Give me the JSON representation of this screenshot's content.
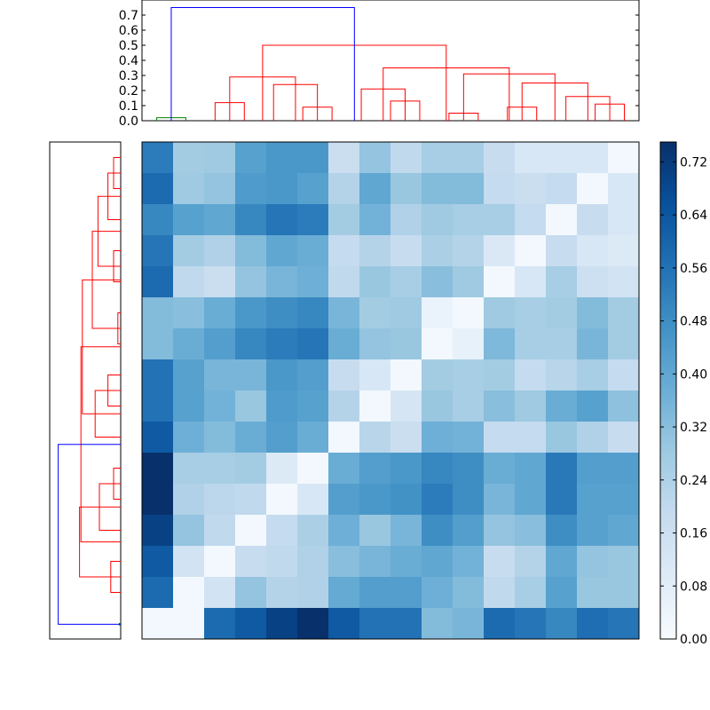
{
  "chart_data": [
    {
      "type": "heatmap",
      "title": "",
      "xlabel": "",
      "ylabel": "",
      "colormap": "Blues",
      "value_range": [
        0.0,
        0.75
      ],
      "rows": 16,
      "cols": 16,
      "values": [
        [
          0.53,
          0.27,
          0.28,
          0.42,
          0.45,
          0.45,
          0.17,
          0.3,
          0.2,
          0.26,
          0.26,
          0.18,
          0.12,
          0.12,
          0.12,
          0.02
        ],
        [
          0.58,
          0.28,
          0.3,
          0.44,
          0.45,
          0.42,
          0.23,
          0.4,
          0.29,
          0.33,
          0.33,
          0.19,
          0.17,
          0.19,
          0.02,
          0.12
        ],
        [
          0.5,
          0.42,
          0.4,
          0.5,
          0.55,
          0.53,
          0.27,
          0.36,
          0.24,
          0.28,
          0.26,
          0.26,
          0.19,
          0.02,
          0.18,
          0.12
        ],
        [
          0.55,
          0.27,
          0.24,
          0.33,
          0.4,
          0.38,
          0.19,
          0.23,
          0.18,
          0.25,
          0.23,
          0.11,
          0.02,
          0.18,
          0.12,
          0.1
        ],
        [
          0.58,
          0.2,
          0.17,
          0.3,
          0.35,
          0.37,
          0.2,
          0.29,
          0.26,
          0.32,
          0.28,
          0.02,
          0.12,
          0.26,
          0.16,
          0.14
        ],
        [
          0.33,
          0.32,
          0.38,
          0.45,
          0.48,
          0.5,
          0.35,
          0.27,
          0.28,
          0.05,
          0.02,
          0.28,
          0.26,
          0.27,
          0.33,
          0.27
        ],
        [
          0.33,
          0.38,
          0.43,
          0.5,
          0.53,
          0.55,
          0.38,
          0.3,
          0.29,
          0.02,
          0.06,
          0.34,
          0.26,
          0.26,
          0.35,
          0.27
        ],
        [
          0.56,
          0.42,
          0.35,
          0.35,
          0.45,
          0.43,
          0.18,
          0.12,
          0.02,
          0.27,
          0.26,
          0.27,
          0.19,
          0.22,
          0.26,
          0.19
        ],
        [
          0.56,
          0.42,
          0.36,
          0.29,
          0.44,
          0.42,
          0.23,
          0.02,
          0.13,
          0.29,
          0.26,
          0.32,
          0.28,
          0.38,
          0.42,
          0.31
        ],
        [
          0.63,
          0.37,
          0.33,
          0.38,
          0.43,
          0.38,
          0.02,
          0.22,
          0.17,
          0.37,
          0.36,
          0.19,
          0.19,
          0.29,
          0.24,
          0.18
        ],
        [
          0.75,
          0.26,
          0.26,
          0.27,
          0.1,
          0.02,
          0.38,
          0.43,
          0.45,
          0.5,
          0.48,
          0.38,
          0.4,
          0.54,
          0.43,
          0.43
        ],
        [
          0.76,
          0.24,
          0.21,
          0.2,
          0.02,
          0.12,
          0.43,
          0.45,
          0.47,
          0.53,
          0.48,
          0.35,
          0.4,
          0.54,
          0.42,
          0.42
        ],
        [
          0.7,
          0.3,
          0.2,
          0.02,
          0.19,
          0.25,
          0.37,
          0.29,
          0.35,
          0.48,
          0.43,
          0.3,
          0.32,
          0.48,
          0.42,
          0.4
        ],
        [
          0.63,
          0.14,
          0.02,
          0.18,
          0.2,
          0.24,
          0.32,
          0.35,
          0.38,
          0.4,
          0.36,
          0.18,
          0.23,
          0.4,
          0.3,
          0.29
        ],
        [
          0.58,
          0.02,
          0.14,
          0.3,
          0.23,
          0.24,
          0.39,
          0.43,
          0.43,
          0.37,
          0.33,
          0.2,
          0.26,
          0.42,
          0.29,
          0.29
        ],
        [
          0.02,
          0.02,
          0.58,
          0.63,
          0.7,
          0.76,
          0.63,
          0.56,
          0.56,
          0.33,
          0.35,
          0.58,
          0.55,
          0.5,
          0.57,
          0.55
        ]
      ],
      "colorbar": {
        "ticks": [
          "0.00",
          "0.08",
          "0.16",
          "0.24",
          "0.32",
          "0.40",
          "0.48",
          "0.56",
          "0.64",
          "0.72"
        ],
        "tick_values": [
          0.0,
          0.08,
          0.16,
          0.24,
          0.32,
          0.4,
          0.48,
          0.56,
          0.64,
          0.72
        ]
      }
    },
    {
      "type": "dendrogram",
      "orientation": "top",
      "title": "",
      "xlabel": "",
      "ylabel": "",
      "ylim": [
        0,
        0.8
      ],
      "yticks": [
        "0.0",
        "0.1",
        "0.2",
        "0.3",
        "0.4",
        "0.5",
        "0.6",
        "0.7"
      ],
      "ytick_values": [
        0.0,
        0.1,
        0.2,
        0.3,
        0.4,
        0.5,
        0.6,
        0.7
      ],
      "links": [
        {
          "left": 0.5,
          "right": 1.5,
          "height": 0.02,
          "color": "#008000"
        },
        {
          "left": 2.5,
          "right": 3.5,
          "height": 0.12,
          "color": "#ff0000"
        },
        {
          "left": 5.5,
          "right": 6.5,
          "height": 0.09,
          "color": "#ff0000"
        },
        {
          "left": 4.5,
          "right": 6.0,
          "height": 0.24,
          "color": "#ff0000"
        },
        {
          "left": 3.0,
          "right": 5.25,
          "height": 0.29,
          "color": "#ff0000"
        },
        {
          "left": 8.5,
          "right": 9.5,
          "height": 0.13,
          "color": "#ff0000"
        },
        {
          "left": 7.5,
          "right": 9.0,
          "height": 0.21,
          "color": "#ff0000"
        },
        {
          "left": 10.5,
          "right": 11.5,
          "height": 0.05,
          "color": "#ff0000"
        },
        {
          "left": 12.5,
          "right": 13.5,
          "height": 0.09,
          "color": "#ff0000"
        },
        {
          "left": 15.5,
          "right": 16.5,
          "height": 0.11,
          "color": "#ff0000"
        },
        {
          "left": 14.5,
          "right": 16.0,
          "height": 0.16,
          "color": "#ff0000"
        },
        {
          "left": 13.0,
          "right": 15.25,
          "height": 0.25,
          "color": "#ff0000"
        },
        {
          "left": 11.0,
          "right": 14.125,
          "height": 0.31,
          "color": "#ff0000"
        },
        {
          "left": 8.25,
          "right": 12.5625,
          "height": 0.35,
          "color": "#ff0000"
        },
        {
          "left": 4.125,
          "right": 10.40625,
          "height": 0.5,
          "color": "#ff0000"
        },
        {
          "left": 1.0,
          "right": 7.265625,
          "height": 0.75,
          "color": "#0000ff"
        }
      ]
    },
    {
      "type": "dendrogram",
      "orientation": "left",
      "title": "",
      "xlabel": "",
      "ylabel": "",
      "links": [
        {
          "top": 0.5,
          "bottom": 1.5,
          "height": 0.05,
          "color": "#ff0000"
        },
        {
          "top": 1.0,
          "bottom": 2.5,
          "height": 0.09,
          "color": "#ff0000"
        },
        {
          "top": 3.5,
          "bottom": 4.5,
          "height": 0.05,
          "color": "#ff0000"
        },
        {
          "top": 1.75,
          "bottom": 4.0,
          "height": 0.16,
          "color": "#ff0000"
        },
        {
          "top": 5.5,
          "bottom": 6.5,
          "height": 0.02,
          "color": "#ff0000"
        },
        {
          "top": 2.875,
          "bottom": 6.0,
          "height": 0.2,
          "color": "#ff0000"
        },
        {
          "top": 7.5,
          "bottom": 8.5,
          "height": 0.09,
          "color": "#ff0000"
        },
        {
          "top": 8.0,
          "bottom": 9.5,
          "height": 0.18,
          "color": "#ff0000"
        },
        {
          "top": 4.4375,
          "bottom": 8.75,
          "height": 0.27,
          "color": "#ff0000"
        },
        {
          "top": 10.5,
          "bottom": 11.5,
          "height": 0.05,
          "color": "#ff0000"
        },
        {
          "top": 11.0,
          "bottom": 12.5,
          "height": 0.15,
          "color": "#ff0000"
        },
        {
          "top": 13.5,
          "bottom": 14.5,
          "height": 0.07,
          "color": "#ff0000"
        },
        {
          "top": 11.75,
          "bottom": 14.0,
          "height": 0.29,
          "color": "#ff0000"
        },
        {
          "top": 6.59375,
          "bottom": 12.875,
          "height": 0.28,
          "color": "#ff0000"
        },
        {
          "top": 15.5,
          "bottom": 15.55,
          "height": 0.01,
          "color": "#008000"
        },
        {
          "top": 9.734375,
          "bottom": 15.525,
          "height": 0.44,
          "color": "#0000ff"
        }
      ]
    }
  ]
}
